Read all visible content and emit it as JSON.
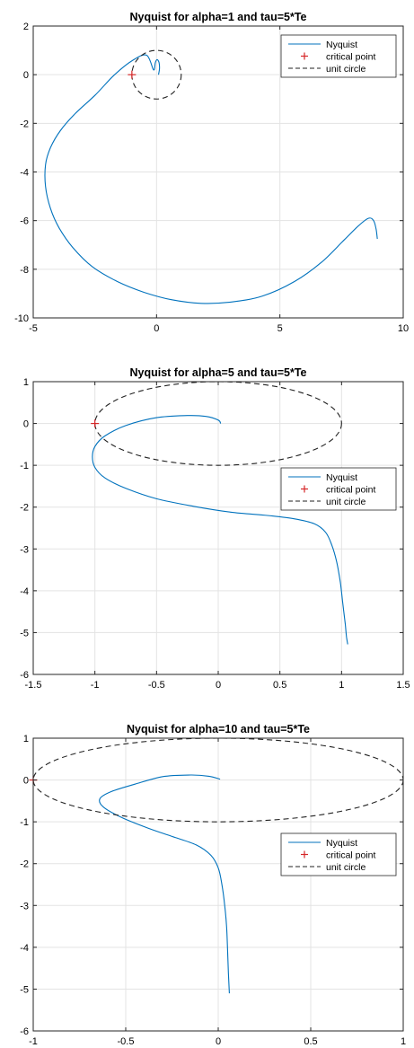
{
  "chart_data": [
    {
      "type": "line",
      "title": "Nyquist for alpha=1 and tau=5*Te",
      "xlabel": "",
      "ylabel": "",
      "xlim": [
        -5,
        10
      ],
      "ylim": [
        -10,
        2
      ],
      "xticks": [
        -5,
        0,
        5,
        10
      ],
      "yticks": [
        -10,
        -8,
        -6,
        -4,
        -2,
        0,
        2
      ],
      "grid": true,
      "legend_placement": "top-right",
      "series": [
        {
          "name": "Nyquist",
          "color": "#0072BD",
          "style": "solid",
          "x": [
            0.08,
            0.12,
            0.1,
            0.02,
            -0.05,
            -0.12,
            -0.4,
            -0.95,
            -1.7,
            -2.5,
            -3.3,
            -3.9,
            -4.3,
            -4.5,
            -4.5,
            -4.3,
            -3.95,
            -3.4,
            -2.6,
            -1.6,
            -0.5,
            0.6,
            1.8,
            3.0,
            4.3,
            5.6,
            6.7,
            7.6,
            8.2,
            8.6,
            8.8,
            8.9,
            8.95
          ],
          "y": [
            0.0,
            0.25,
            0.5,
            0.62,
            0.5,
            0.2,
            0.8,
            0.6,
            0.0,
            -0.85,
            -1.6,
            -2.3,
            -3.0,
            -3.7,
            -4.6,
            -5.5,
            -6.3,
            -7.1,
            -7.9,
            -8.5,
            -8.95,
            -9.25,
            -9.4,
            -9.35,
            -9.1,
            -8.5,
            -7.7,
            -6.8,
            -6.2,
            -5.9,
            -6.0,
            -6.35,
            -6.75
          ]
        },
        {
          "name": "critical point",
          "color": "#D62728",
          "style": "marker-plus",
          "x": [
            -1
          ],
          "y": [
            0
          ]
        },
        {
          "name": "unit circle",
          "color": "#222222",
          "style": "dashed",
          "shape": "circle",
          "center": [
            0,
            0
          ],
          "radius": 1
        }
      ]
    },
    {
      "type": "line",
      "title": "Nyquist for alpha=5 and tau=5*Te",
      "xlabel": "",
      "ylabel": "",
      "xlim": [
        -1.5,
        1.5
      ],
      "ylim": [
        -6,
        1
      ],
      "xticks": [
        -1.5,
        -1,
        -0.5,
        0,
        0.5,
        1,
        1.5
      ],
      "yticks": [
        -6,
        -5,
        -4,
        -3,
        -2,
        -1,
        0,
        1
      ],
      "grid": true,
      "legend_placement": "right",
      "series": [
        {
          "name": "Nyquist",
          "color": "#0072BD",
          "style": "solid",
          "x": [
            0.02,
            0.0,
            -0.1,
            -0.25,
            -0.5,
            -0.75,
            -0.92,
            -1.0,
            -1.02,
            -1.0,
            -0.92,
            -0.75,
            -0.5,
            -0.2,
            0.1,
            0.4,
            0.62,
            0.78,
            0.87,
            0.92,
            0.96,
            0.99,
            1.01,
            1.03,
            1.04,
            1.05
          ],
          "y": [
            0.0,
            0.08,
            0.17,
            0.19,
            0.14,
            -0.05,
            -0.3,
            -0.55,
            -0.8,
            -1.05,
            -1.3,
            -1.55,
            -1.8,
            -1.98,
            -2.12,
            -2.2,
            -2.28,
            -2.4,
            -2.6,
            -2.9,
            -3.3,
            -3.8,
            -4.3,
            -4.8,
            -5.1,
            -5.28
          ]
        },
        {
          "name": "critical point",
          "color": "#D62728",
          "style": "marker-plus",
          "x": [
            -1
          ],
          "y": [
            0
          ]
        },
        {
          "name": "unit circle",
          "color": "#222222",
          "style": "dashed",
          "shape": "circle",
          "center": [
            0,
            0
          ],
          "radius": 1
        }
      ]
    },
    {
      "type": "line",
      "title": "Nyquist for alpha=10 and tau=5*Te",
      "xlabel": "",
      "ylabel": "",
      "xlim": [
        -1,
        1
      ],
      "ylim": [
        -6,
        1
      ],
      "xticks": [
        -1,
        -0.5,
        0,
        0.5,
        1
      ],
      "yticks": [
        -6,
        -5,
        -4,
        -3,
        -2,
        -1,
        0,
        1
      ],
      "grid": true,
      "legend_placement": "right",
      "series": [
        {
          "name": "Nyquist",
          "color": "#0072BD",
          "style": "solid",
          "x": [
            0.01,
            -0.05,
            -0.15,
            -0.3,
            -0.45,
            -0.58,
            -0.64,
            -0.62,
            -0.52,
            -0.38,
            -0.25,
            -0.12,
            -0.04,
            0.0,
            0.02,
            0.035,
            0.045,
            0.05,
            0.055,
            0.06
          ],
          "y": [
            0.02,
            0.09,
            0.12,
            0.08,
            -0.1,
            -0.28,
            -0.45,
            -0.65,
            -0.9,
            -1.15,
            -1.35,
            -1.55,
            -1.8,
            -2.1,
            -2.5,
            -3.0,
            -3.5,
            -4.0,
            -4.6,
            -5.1
          ]
        },
        {
          "name": "critical point",
          "color": "#D62728",
          "style": "marker-plus",
          "x": [
            -1
          ],
          "y": [
            0
          ]
        },
        {
          "name": "unit circle",
          "color": "#222222",
          "style": "dashed",
          "shape": "circle",
          "center": [
            0,
            0
          ],
          "radius": 1
        }
      ]
    }
  ]
}
